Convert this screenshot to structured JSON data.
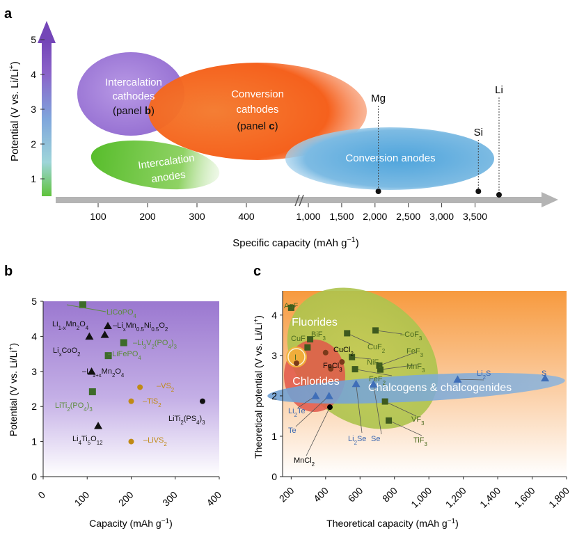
{
  "chart_data": [
    {
      "panel": "a",
      "type": "scatter",
      "xlabel": "Specific capacity (mAh g−1)",
      "ylabel": "Potential (V vs. Li/Li+)",
      "x_ticks_left": [
        "100",
        "200",
        "300",
        "400"
      ],
      "x_ticks_right": [
        "1,000",
        "1,500",
        "2,000",
        "2,500",
        "3,000",
        "3,500"
      ],
      "y_ticks": [
        "1",
        "2",
        "3",
        "4",
        "5"
      ],
      "ylim": [
        0.5,
        5.5
      ],
      "regions": [
        {
          "name": "Intercalation cathodes",
          "sub": "(panel ",
          "bold": "b",
          "end": ")",
          "color": "#9d79d6"
        },
        {
          "name": "Conversion cathodes",
          "sub": "(panel ",
          "bold": "c",
          "end": ")",
          "color": "#f4581a"
        },
        {
          "name": "Intercalation anodes",
          "color": "#5cc030"
        },
        {
          "name": "Conversion anodes",
          "color": "#5aa8d8"
        }
      ],
      "points": [
        {
          "label": "Mg",
          "x": 2050,
          "y": 0.6
        },
        {
          "label": "Si",
          "x": 3550,
          "y": 0.6
        },
        {
          "label": "Li",
          "x": 3860,
          "y": 0.5
        }
      ]
    },
    {
      "panel": "b",
      "type": "scatter",
      "xlabel": "Capacity (mAh g−1)",
      "ylabel": "Potential (V vs. Li/Li+)",
      "xlim": [
        0,
        400
      ],
      "ylim": [
        0,
        5
      ],
      "x_ticks": [
        "0",
        "100",
        "200",
        "300",
        "400"
      ],
      "y_ticks": [
        "0",
        "1",
        "2",
        "3",
        "4",
        "5"
      ],
      "colors": {
        "black": "#111111",
        "green": "#3d6b2a",
        "gold": "#c08a14",
        "label_green": "#5b8c3a"
      },
      "points": [
        {
          "x": 90,
          "y": 4.9,
          "marker": "square",
          "color": "green",
          "label": "LiCoPO4"
        },
        {
          "x": 105,
          "y": 4.0,
          "marker": "triangle",
          "color": "black",
          "label": "Li1-xMn2O4"
        },
        {
          "x": 140,
          "y": 4.05,
          "marker": "triangle",
          "color": "black",
          "label": "LixCoO2"
        },
        {
          "x": 147,
          "y": 4.3,
          "marker": "triangle",
          "color": "black",
          "label": "LixMn0.5Ni0.5O2"
        },
        {
          "x": 183,
          "y": 3.82,
          "marker": "square",
          "color": "green",
          "label": "Li3V2(PO4)3"
        },
        {
          "x": 148,
          "y": 3.45,
          "marker": "square",
          "color": "green",
          "label": "LiFePO4"
        },
        {
          "x": 110,
          "y": 3.0,
          "marker": "triangle",
          "color": "black",
          "label": "Li1+xMn2O4"
        },
        {
          "x": 112,
          "y": 2.42,
          "marker": "square",
          "color": "green",
          "label": "LiTi2(PO4)3"
        },
        {
          "x": 220,
          "y": 2.55,
          "marker": "circle",
          "color": "gold",
          "label": "VS2"
        },
        {
          "x": 200,
          "y": 2.15,
          "marker": "circle",
          "color": "gold",
          "label": "TiS2"
        },
        {
          "x": 362,
          "y": 2.15,
          "marker": "circle",
          "color": "black",
          "label": "LiTi2(PS4)3"
        },
        {
          "x": 125,
          "y": 1.45,
          "marker": "triangle",
          "color": "black",
          "label": "Li4Ti5O12"
        },
        {
          "x": 200,
          "y": 1.0,
          "marker": "circle",
          "color": "gold",
          "label": "LiVS2"
        }
      ],
      "labels": [
        {
          "t": "LiCoPO",
          "s": "4",
          "color": "label_green"
        },
        {
          "t": "Li",
          "s": "1-x",
          "t2": "Mn",
          "s2": "2",
          "t3": "O",
          "s3": "4",
          "color": "black"
        },
        {
          "t": "Li",
          "s": "x",
          "t2": "CoO",
          "s2": "2",
          "color": "black"
        },
        {
          "t": "–Li",
          "s": "x",
          "t2": "Mn",
          "s2": "0.5",
          "t3": "Ni",
          "s3": "0.5",
          "t4": "O",
          "s4": "2",
          "color": "black"
        },
        {
          "t": "–Li",
          "s": "3",
          "t2": "V",
          "s2": "2",
          "t3": "(PO",
          "s3": "4",
          "t4": ")",
          "s4": "3",
          "color": "label_green"
        },
        {
          "t": "–LiFePO",
          "s": "4",
          "color": "label_green"
        },
        {
          "t": "–Li",
          "s": "1+x",
          "t2": "Mn",
          "s2": "2",
          "t3": "O",
          "s3": "4",
          "color": "black"
        },
        {
          "t": "LiTi",
          "s": "2",
          "t2": "(PO",
          "s2": "4",
          "t3": ")",
          "s3": "3",
          "color": "label_green"
        },
        {
          "t": "–VS",
          "s": "2",
          "color": "gold"
        },
        {
          "t": "–TiS",
          "s": "2",
          "color": "gold"
        },
        {
          "t": "LiTi",
          "s": "2",
          "t2": "(PS",
          "s2": "4",
          "t3": ")",
          "s3": "3",
          "color": "black"
        },
        {
          "t": "Li",
          "s": "4",
          "t2": "Ti",
          "s2": "5",
          "t3": "O",
          "s3": "12",
          "color": "black"
        },
        {
          "t": "–LiVS",
          "s": "2",
          "color": "gold"
        }
      ]
    },
    {
      "panel": "c",
      "type": "scatter",
      "xlabel": "Theoretical capacity (mAh g−1)",
      "ylabel": "Theoretical potential (V vs. Li/Li+)",
      "xlim": [
        150,
        1800
      ],
      "ylim": [
        0,
        4.6
      ],
      "x_ticks": [
        "200",
        "400",
        "600",
        "800",
        "1,000",
        "1,200",
        "1,400",
        "1,600",
        "1,800"
      ],
      "y_ticks": [
        "0",
        "1",
        "2",
        "3",
        "4"
      ],
      "regions": [
        {
          "name": "Fluorides",
          "color": "#b8c64a"
        },
        {
          "name": "Chlorides",
          "color": "#e0584a"
        },
        {
          "name": "Chalcogens & chalcogenides",
          "color": "#6c9fd4"
        }
      ],
      "colors": {
        "fluoride": "#3e5a1e",
        "chloride": "#7a3a1a",
        "chalcogen": "#3f6eb8",
        "iodide": "#c89020",
        "label_green": "#4a6a1e",
        "label_blue": "#3a66b0"
      },
      "points": [
        {
          "label": "AgF",
          "x": 200,
          "y": 4.18,
          "marker": "square",
          "color": "fluoride"
        },
        {
          "label": "CuF",
          "x": 295,
          "y": 3.2,
          "marker": "square",
          "color": "fluoride"
        },
        {
          "label": "BiF3",
          "x": 310,
          "y": 3.4,
          "marker": "square",
          "color": "fluoride"
        },
        {
          "label": "CoF3",
          "x": 690,
          "y": 3.62,
          "marker": "square",
          "color": "fluoride"
        },
        {
          "label": "CuF2",
          "x": 525,
          "y": 3.55,
          "marker": "square",
          "color": "fluoride"
        },
        {
          "label": "NiF2",
          "x": 553,
          "y": 2.96,
          "marker": "square",
          "color": "fluoride"
        },
        {
          "label": "FeF3",
          "x": 712,
          "y": 2.75,
          "marker": "square",
          "color": "fluoride"
        },
        {
          "label": "MnF3",
          "x": 718,
          "y": 2.65,
          "marker": "square",
          "color": "fluoride"
        },
        {
          "label": "FeF2",
          "x": 571,
          "y": 2.66,
          "marker": "square",
          "color": "fluoride"
        },
        {
          "label": "VF3",
          "x": 745,
          "y": 1.86,
          "marker": "square",
          "color": "fluoride"
        },
        {
          "label": "TiF3",
          "x": 767,
          "y": 1.39,
          "marker": "square",
          "color": "fluoride"
        },
        {
          "label": "CuCl2",
          "x": 400,
          "y": 3.07,
          "marker": "circle",
          "color": "chloride"
        },
        {
          "label": "FeCl3",
          "x": 495,
          "y": 2.84,
          "marker": "circle",
          "color": "chloride"
        },
        {
          "label": "FeCl3b",
          "x": 430,
          "y": 2.67,
          "marker": "circle",
          "color": "chloride"
        },
        {
          "label": "MnCl2",
          "x": 425,
          "y": 1.72,
          "marker": "circle",
          "color": "black"
        },
        {
          "label": "I",
          "x": 210,
          "y": 2.88,
          "marker": "circle",
          "color": "chloride"
        },
        {
          "label": "Li2S",
          "x": 1167,
          "y": 2.41,
          "marker": "triangle",
          "color": "chalcogen"
        },
        {
          "label": "S",
          "x": 1675,
          "y": 2.44,
          "marker": "triangle",
          "color": "chalcogen"
        },
        {
          "label": "Li2Se",
          "x": 577,
          "y": 2.3,
          "marker": "triangle",
          "color": "chalcogen"
        },
        {
          "label": "Se",
          "x": 678,
          "y": 2.29,
          "marker": "triangle",
          "color": "chalcogen"
        },
        {
          "label": "Li2Te",
          "x": 342,
          "y": 2.0,
          "marker": "triangle",
          "color": "chalcogen"
        },
        {
          "label": "Te",
          "x": 420,
          "y": 2.0,
          "marker": "triangle",
          "color": "chalcogen"
        }
      ],
      "labels": {
        "AgF": {
          "t": "AgF",
          "color": "label_green"
        },
        "CuF": {
          "t": "CuF",
          "color": "label_green"
        },
        "BiF3": {
          "t": "BiF",
          "s": "3",
          "color": "label_green"
        },
        "CoF3": {
          "t": "–CoF",
          "s": "3",
          "color": "label_green"
        },
        "CuCl2": {
          "t": "CuCl",
          "s": "2",
          "color": "black"
        },
        "CuF2": {
          "t": "CuF",
          "s": "2",
          "color": "label_green"
        },
        "FeF3": {
          "t": "FeF",
          "s": "3",
          "color": "label_green"
        },
        "NiF2": {
          "t": "NiF",
          "s": "2",
          "color": "label_green"
        },
        "MnF3": {
          "t": "MnF",
          "s": "3",
          "color": "label_green"
        },
        "FeCl3": {
          "t": "FeCl",
          "s": "3",
          "color": "black"
        },
        "FeF2": {
          "t": "FeF",
          "s": "2",
          "color": "label_green"
        },
        "I": {
          "t": "I",
          "color": "label_green"
        },
        "Li2S": {
          "t": "Li",
          "s": "2",
          "t2": "S",
          "color": "label_blue"
        },
        "S": {
          "t": "S",
          "color": "label_blue"
        },
        "Li2Te": {
          "t": "Li",
          "s": "2",
          "t2": "Te",
          "color": "label_blue"
        },
        "Te": {
          "t": "Te",
          "color": "label_blue"
        },
        "Li2Se": {
          "t": "Li",
          "s": "2",
          "t2": "Se",
          "color": "label_blue"
        },
        "Se": {
          "t": "Se",
          "color": "label_blue"
        },
        "VF3": {
          "t": "VF",
          "s": "3",
          "color": "label_green"
        },
        "TiF3": {
          "t": "TiF",
          "s": "3",
          "color": "label_green"
        },
        "MnCl2": {
          "t": "MnCl",
          "s": "2",
          "color": "black"
        }
      }
    }
  ],
  "panel_letters": [
    "a",
    "b",
    "c"
  ]
}
